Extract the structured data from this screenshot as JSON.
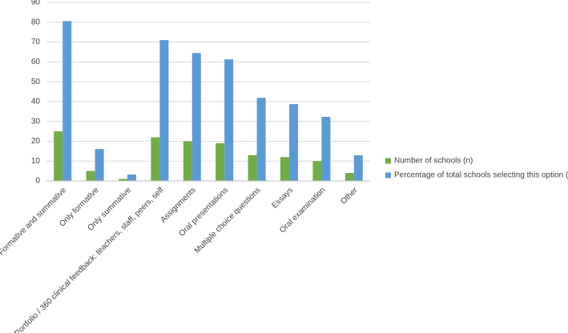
{
  "chart_data": {
    "type": "bar",
    "categories": [
      "Formative and summative",
      "Only formative",
      "Only summative",
      "Portfolio / 360 clinical feedback: teachers, staff, peers, self",
      "Assignments",
      "Oral presentations",
      "Multiple choice questions",
      "Essays",
      "Oral examination",
      "Other"
    ],
    "series": [
      {
        "name": "Number of schools (n)",
        "color": "#70ad47",
        "values": [
          25,
          5,
          1,
          22,
          20,
          19,
          13,
          12,
          10,
          4
        ]
      },
      {
        "name": "Percentage of total schools selecting this option (%)",
        "color": "#5b9bd5",
        "values": [
          80.6,
          16.1,
          3.2,
          71,
          64.5,
          61.3,
          41.9,
          38.7,
          32.3,
          12.9
        ]
      }
    ],
    "ylim": [
      0,
      90
    ],
    "yticks": [
      0,
      10,
      20,
      30,
      40,
      50,
      60,
      70,
      80,
      90
    ],
    "grid": true,
    "legend": "right"
  }
}
